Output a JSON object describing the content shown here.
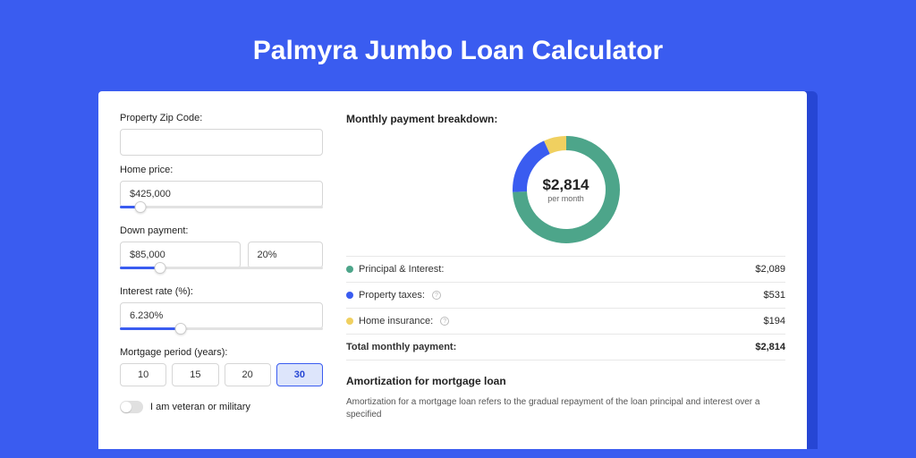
{
  "title": "Palmyra Jumbo Loan Calculator",
  "colors": {
    "page_bg": "#3a5cf0",
    "shadow": "#2646d4",
    "card": "#ffffff",
    "input_border": "#d6d6d6",
    "divider": "#e8e8e8",
    "text": "#222222"
  },
  "form": {
    "zip_label": "Property Zip Code:",
    "zip_value": "",
    "home_price_label": "Home price:",
    "home_price_value": "$425,000",
    "home_price_slider_pct": 10,
    "down_payment_label": "Down payment:",
    "down_payment_value": "$85,000",
    "down_payment_pct": "20%",
    "down_payment_slider_pct": 20,
    "interest_label": "Interest rate (%):",
    "interest_value": "6.230%",
    "interest_slider_pct": 30,
    "period_label": "Mortgage period (years):",
    "periods": [
      "10",
      "15",
      "20",
      "30"
    ],
    "period_selected": "30",
    "veteran_label": "I am veteran or military"
  },
  "breakdown": {
    "title": "Monthly payment breakdown:",
    "donut": {
      "type": "donut",
      "amount": "$2,814",
      "sub": "per month",
      "radius": 52,
      "stroke_width": 16,
      "circumference": 326.7,
      "slices": [
        {
          "label": "Principal & Interest",
          "value": "$2,089",
          "fraction": 0.742,
          "color": "#4da58a"
        },
        {
          "label": "Property taxes",
          "value": "$531",
          "fraction": 0.189,
          "color": "#3a5cf0"
        },
        {
          "label": "Home insurance",
          "value": "$194",
          "fraction": 0.069,
          "color": "#f0d060"
        }
      ]
    },
    "rows": [
      {
        "label": "Principal & Interest:",
        "value": "$2,089",
        "color": "#4da58a",
        "info": false
      },
      {
        "label": "Property taxes:",
        "value": "$531",
        "color": "#3a5cf0",
        "info": true
      },
      {
        "label": "Home insurance:",
        "value": "$194",
        "color": "#f0d060",
        "info": true
      }
    ],
    "total_label": "Total monthly payment:",
    "total_value": "$2,814"
  },
  "amortization": {
    "title": "Amortization for mortgage loan",
    "text": "Amortization for a mortgage loan refers to the gradual repayment of the loan principal and interest over a specified"
  }
}
